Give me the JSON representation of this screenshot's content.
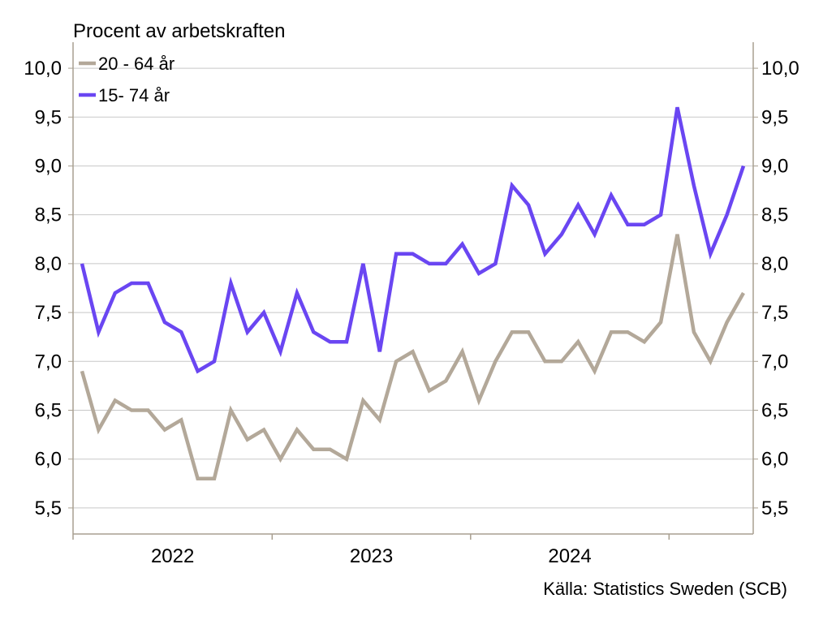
{
  "chart_data": {
    "type": "line",
    "title": "Procent av arbetskraften",
    "source": "Källa: Statistics Sweden (SCB)",
    "ylim": [
      5.25,
      10.2
    ],
    "y_ticks": [
      "10,0",
      "9,5",
      "9,0",
      "8,5",
      "8,0",
      "7,5",
      "7,0",
      "6,5",
      "6,0",
      "5,5"
    ],
    "y_tick_values": [
      10.0,
      9.5,
      9.0,
      8.5,
      8.0,
      7.5,
      7.0,
      6.5,
      6.0,
      5.5
    ],
    "x_labels": [
      "2022",
      "2023",
      "2024"
    ],
    "x_start": "2022-01",
    "x_end": "2025-05",
    "grid": true,
    "legend_position": "top-left",
    "series": [
      {
        "name": "20 - 64 år",
        "color": "#b3a899",
        "values": [
          6.9,
          6.3,
          6.6,
          6.5,
          6.5,
          6.3,
          6.4,
          5.8,
          5.8,
          6.5,
          6.2,
          6.3,
          6.0,
          6.3,
          6.1,
          6.1,
          6.0,
          6.6,
          6.4,
          7.0,
          7.1,
          6.7,
          6.8,
          7.1,
          6.6,
          7.0,
          7.3,
          7.3,
          7.0,
          7.0,
          7.2,
          6.9,
          7.3,
          7.3,
          7.2,
          7.4,
          8.3,
          7.3,
          7.0,
          7.4,
          7.7
        ]
      },
      {
        "name": "15- 74 år",
        "color": "#6a46f2",
        "values": [
          8.0,
          7.3,
          7.7,
          7.8,
          7.8,
          7.4,
          7.3,
          6.9,
          7.0,
          7.8,
          7.3,
          7.5,
          7.1,
          7.7,
          7.3,
          7.2,
          7.2,
          8.0,
          7.1,
          8.1,
          8.1,
          8.0,
          8.0,
          8.2,
          7.9,
          8.0,
          8.8,
          8.6,
          8.1,
          8.3,
          8.6,
          8.3,
          8.7,
          8.4,
          8.4,
          8.5,
          9.6,
          8.8,
          8.1,
          8.5,
          9.0
        ]
      }
    ]
  }
}
